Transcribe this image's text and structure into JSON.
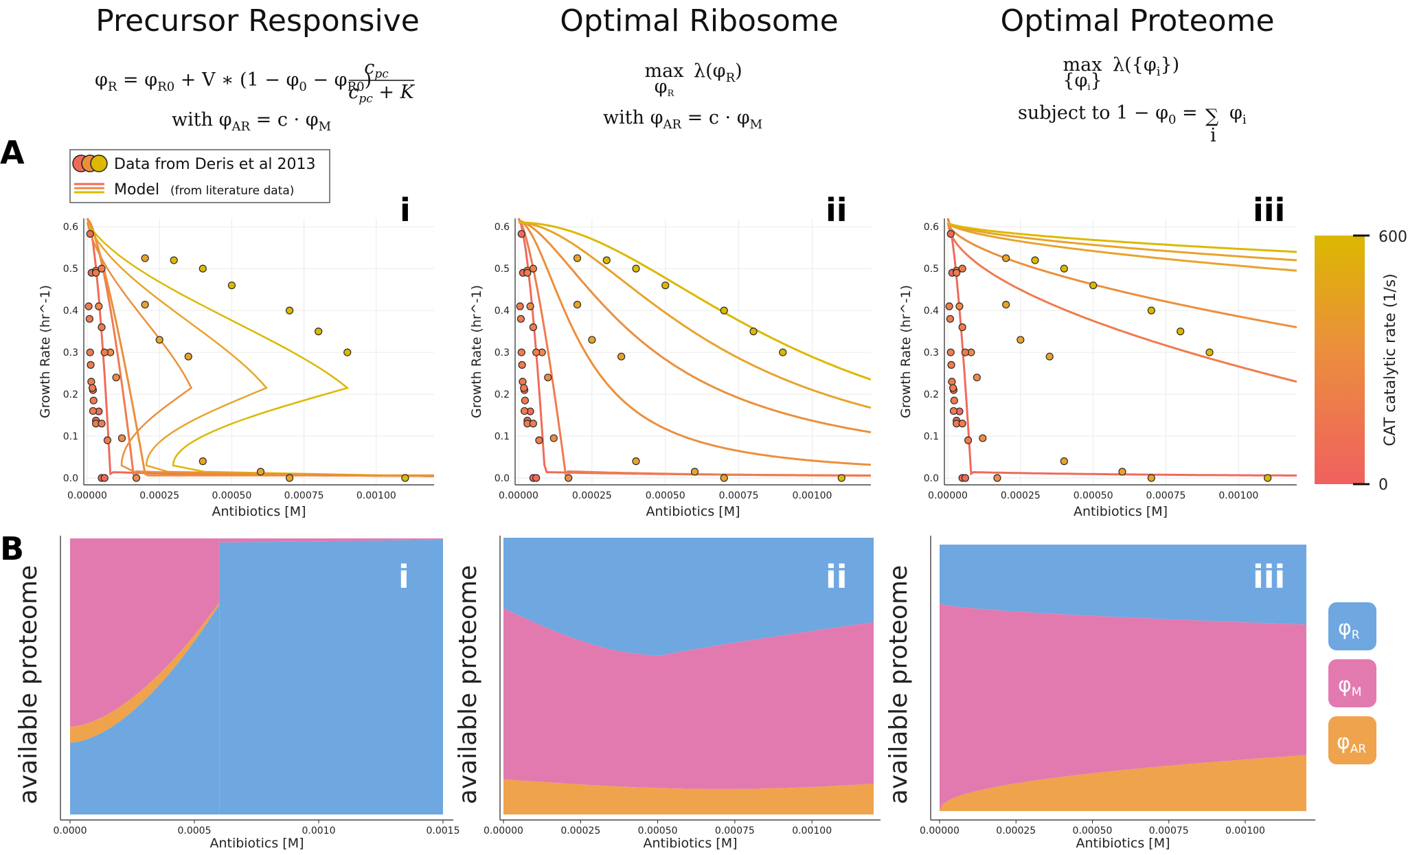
{
  "titles": [
    "Precursor Responsive",
    "Optimal Ribosome",
    "Optimal Proteome"
  ],
  "equations": {
    "col1": [
      "φR = φR0 + V ∗ (1 − φ0 − φR0) cpc / (cpc + K)",
      "with  φAR = c · φM"
    ],
    "col2": [
      "maxφR  λ(φR)",
      "with  φAR = c · φM"
    ],
    "col3": [
      "max{φi}  λ({φi})",
      "subject to  1 − φ0 = Σi φi"
    ]
  },
  "panel_letters": [
    "A",
    "B"
  ],
  "roman": [
    "i",
    "ii",
    "iii"
  ],
  "legend": {
    "data_label": "Data from Deris et al 2013",
    "model_label": "Model",
    "model_note": "(from literature data)"
  },
  "colorbar": {
    "label": "CAT catalytic rate (1/s)",
    "max_label": "600",
    "min_label": "0",
    "colors": [
      "#f0605f",
      "#f0a23a",
      "#dcb800"
    ]
  },
  "phi_legend": [
    {
      "label": "φ",
      "sub": "R",
      "color": "#6fa7e0"
    },
    {
      "label": "φ",
      "sub": "M",
      "color": "#e27ab0"
    },
    {
      "label": "φ",
      "sub": "AR",
      "color": "#efa34d"
    }
  ],
  "chart_data": [
    {
      "type": "scatter",
      "panel": "A-i",
      "xlabel": "Antibiotics [M]",
      "ylabel": "Growth Rate (hr^-1)",
      "xlim": [
        0,
        0.0012
      ],
      "ylim": [
        0,
        0.62
      ],
      "xticks": [
        "0.00000",
        "0.00025",
        "0.00050",
        "0.00075",
        "0.00100"
      ],
      "yticks": [
        "0.0",
        "0.1",
        "0.2",
        "0.3",
        "0.4",
        "0.5",
        "0.6"
      ],
      "series": [
        {
          "color": "#f06a5a",
          "x": [
            1e-05,
            1.5e-05,
            2e-05,
            3e-05,
            4e-05,
            5e-05,
            6e-05
          ],
          "y": [
            0.583,
            0.49,
            0.21,
            0.137,
            0.159,
            0.0,
            0.0
          ]
        },
        {
          "color": "#ef8a48",
          "x": [
            3e-05,
            4e-05,
            8e-05,
            0.0001,
            0.00012,
            0.00017
          ],
          "y": [
            0.495,
            0.41,
            0.3,
            0.24,
            0.095,
            0.0
          ]
        },
        {
          "color": "#e8a32c",
          "x": [
            0.0002,
            0.0002,
            0.00025,
            0.00035,
            0.0004,
            0.0006,
            0.0007
          ],
          "y": [
            0.525,
            0.414,
            0.33,
            0.29,
            0.04,
            0.015,
            0.0
          ]
        },
        {
          "color": "#dcb800",
          "x": [
            0.0003,
            0.0004,
            0.0005,
            0.0007,
            0.0008,
            0.0009,
            0.0011
          ],
          "y": [
            0.52,
            0.5,
            0.46,
            0.4,
            0.35,
            0.3,
            0.0
          ]
        }
      ]
    },
    {
      "type": "scatter",
      "panel": "A-ii",
      "xlabel": "Antibiotics [M]",
      "ylabel": "Growth Rate (hr^-1)",
      "xlim": [
        0,
        0.0012
      ],
      "ylim": [
        0,
        0.62
      ],
      "xticks": [
        "0.00000",
        "0.00025",
        "0.00050",
        "0.00075",
        "0.00100"
      ],
      "yticks": [
        "0.0",
        "0.1",
        "0.2",
        "0.3",
        "0.4",
        "0.5",
        "0.6"
      ]
    },
    {
      "type": "scatter",
      "panel": "A-iii",
      "xlabel": "Antibiotics [M]",
      "ylabel": "Growth Rate (hr^-1)",
      "xlim": [
        0,
        0.0012
      ],
      "ylim": [
        0,
        0.62
      ],
      "xticks": [
        "0.00000",
        "0.00025",
        "0.00050",
        "0.00075",
        "0.00100"
      ],
      "yticks": [
        "0.0",
        "0.1",
        "0.2",
        "0.3",
        "0.4",
        "0.5",
        "0.6"
      ]
    },
    {
      "type": "area",
      "panel": "B-i",
      "xlabel": "Antibiotics [M]",
      "ylabel": "available proteome",
      "xlim": [
        0,
        0.0015
      ],
      "xticks": [
        "0.0000",
        "0.0005",
        "0.0010",
        "0.0015"
      ],
      "series": [
        "φR",
        "φAR",
        "φM"
      ]
    },
    {
      "type": "area",
      "panel": "B-ii",
      "xlabel": "Antibiotics [M]",
      "ylabel": "available proteome",
      "xlim": [
        0,
        0.0012
      ],
      "xticks": [
        "0.00000",
        "0.00025",
        "0.00050",
        "0.00075",
        "0.00100"
      ],
      "series": [
        "φAR",
        "φM",
        "φR"
      ]
    },
    {
      "type": "area",
      "panel": "B-iii",
      "xlabel": "Antibiotics [M]",
      "ylabel": "available proteome",
      "xlim": [
        0,
        0.0012
      ],
      "xticks": [
        "0.00000",
        "0.00025",
        "0.00050",
        "0.00075",
        "0.00100"
      ],
      "series": [
        "φAR",
        "φM",
        "φR"
      ]
    }
  ]
}
